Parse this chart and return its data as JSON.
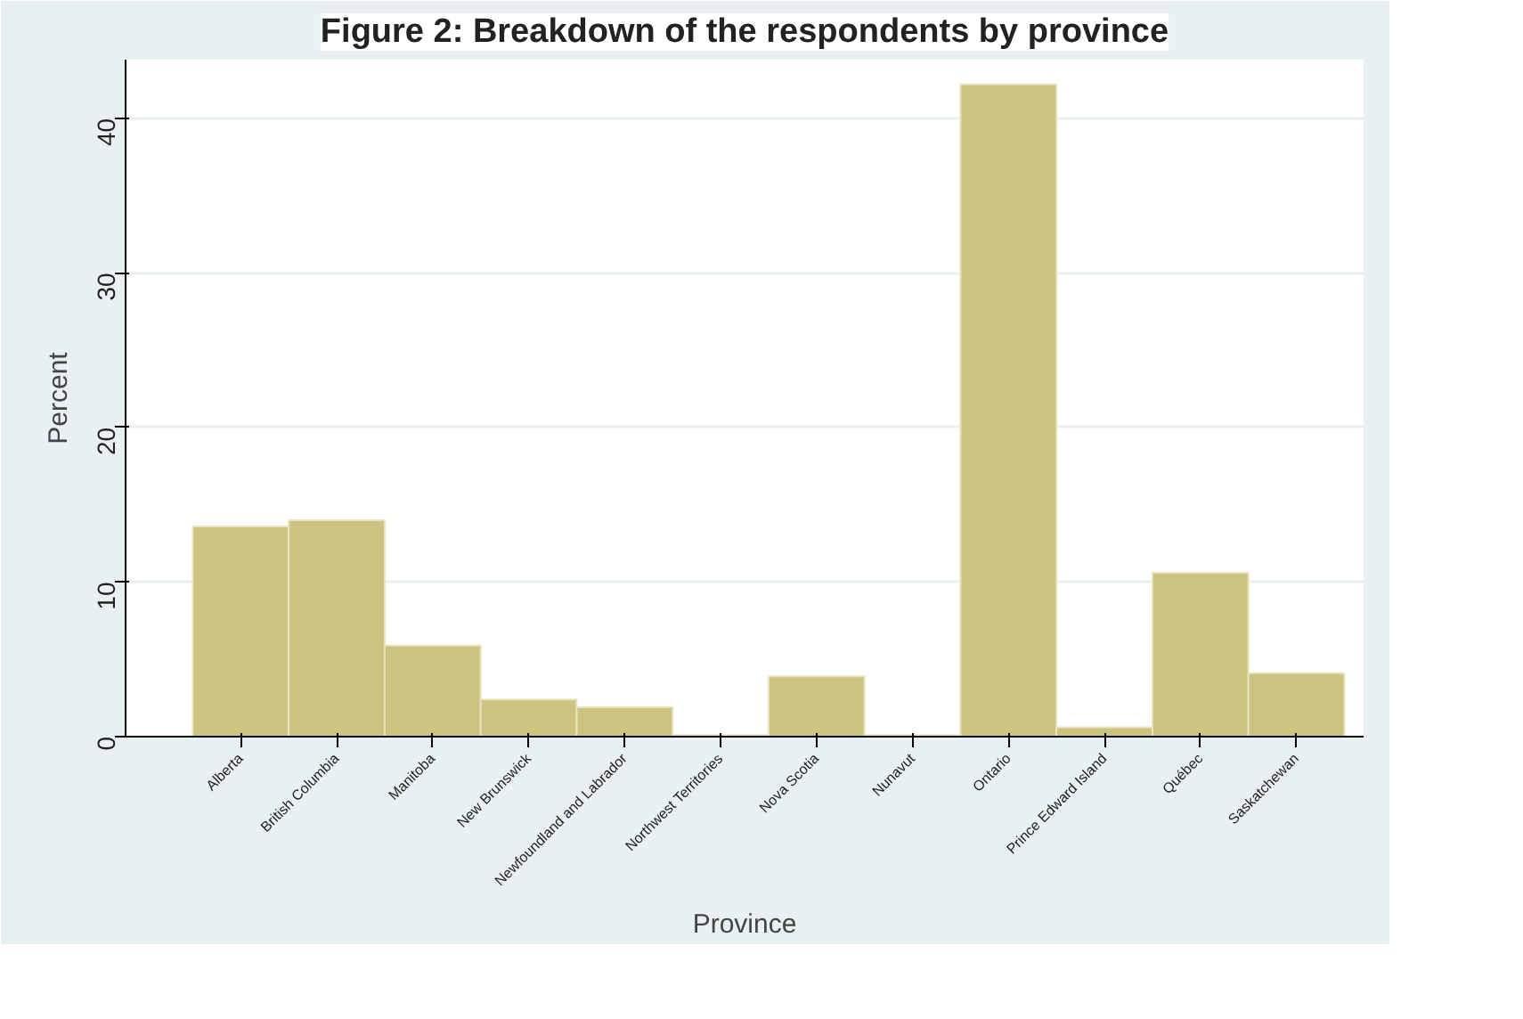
{
  "chart_data": {
    "type": "bar",
    "title": "Figure 2: Breakdown of the respondents by province",
    "xlabel": "Province",
    "ylabel": "Percent",
    "categories": [
      "Alberta",
      "British Columbia",
      "Manitoba",
      "New Brunswick",
      "Newfoundland and Labrador",
      "Northwest Territories",
      "Nova Scotia",
      "Nunavut",
      "Ontario",
      "Prince Edward Island",
      "Québec",
      "Saskatchewan"
    ],
    "values": [
      13.6,
      14.0,
      5.9,
      2.4,
      1.9,
      0.1,
      3.9,
      0.1,
      42.2,
      0.6,
      10.6,
      4.1
    ],
    "color": "#cbc37f",
    "ylim": [
      0,
      43.8
    ],
    "yticks": [
      0,
      10,
      20,
      30,
      40
    ],
    "grid": "y"
  }
}
